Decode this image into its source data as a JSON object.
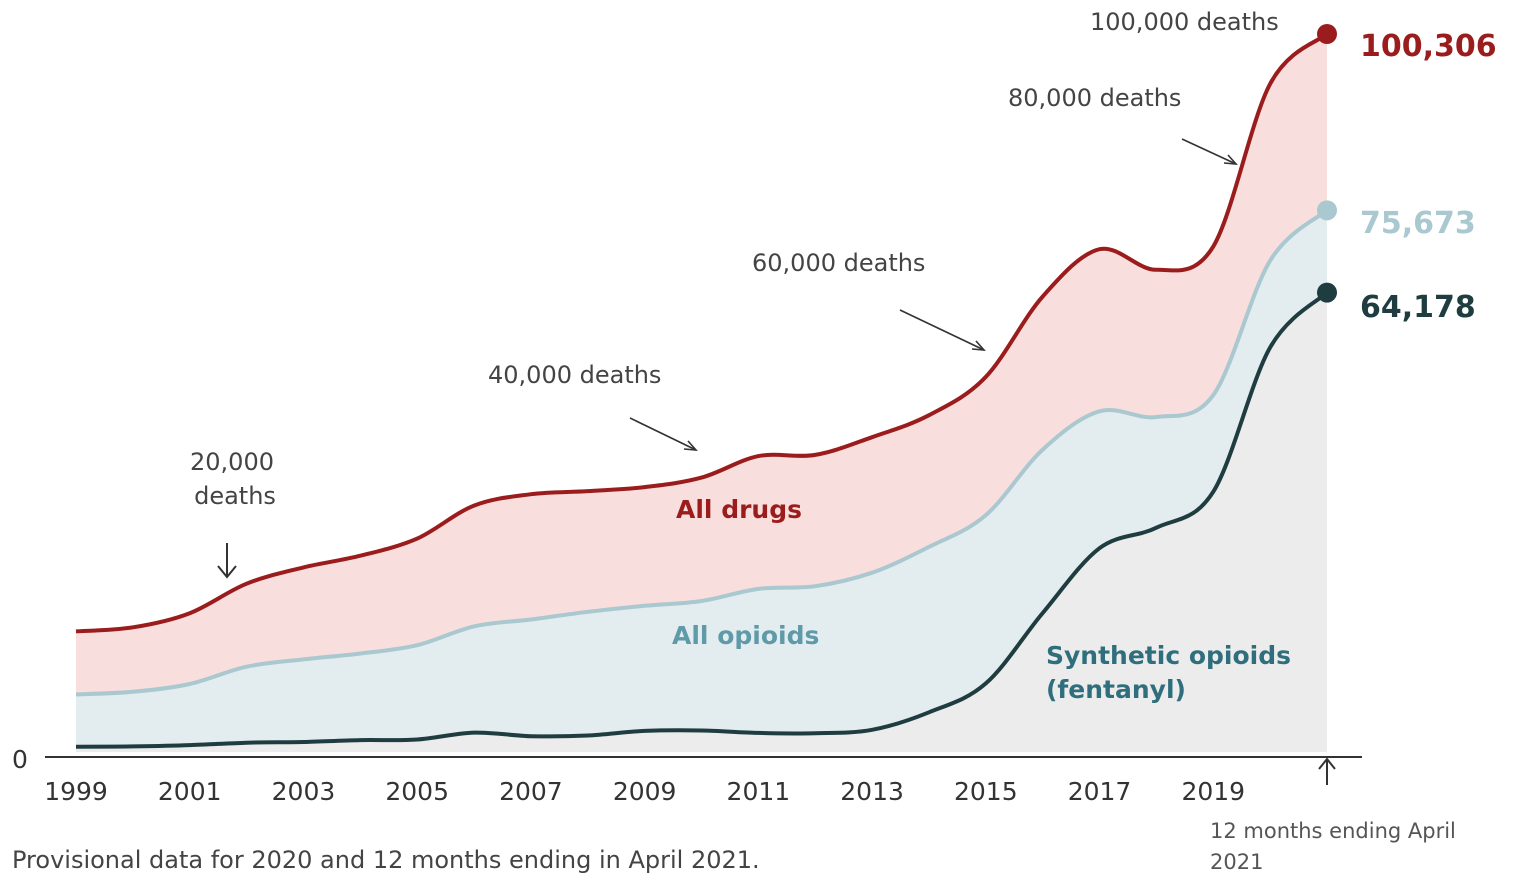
{
  "chart_data": {
    "type": "area",
    "x": [
      "1999",
      "2000",
      "2001",
      "2002",
      "2003",
      "2004",
      "2005",
      "2006",
      "2007",
      "2008",
      "2009",
      "2010",
      "2011",
      "2012",
      "2013",
      "2014",
      "2015",
      "2016",
      "2017",
      "2018",
      "2019",
      "2020",
      "12 months ending April 2021"
    ],
    "x_tick_labels": [
      "1999",
      "2001",
      "2003",
      "2005",
      "2007",
      "2009",
      "2011",
      "2013",
      "2015",
      "2017",
      "2019"
    ],
    "y_tick_labels": [
      "0"
    ],
    "ylim": [
      0,
      100306
    ],
    "grid": false,
    "series": [
      {
        "name": "All drugs",
        "color": "#9b1c1c",
        "fill": "#f9dede",
        "values": [
          16849,
          17415,
          19394,
          23518,
          25785,
          27424,
          29813,
          34425,
          36010,
          36450,
          37004,
          38329,
          41340,
          41502,
          43982,
          47055,
          52404,
          63632,
          70237,
          67367,
          70630,
          93331,
          100306
        ]
      },
      {
        "name": "All opioids",
        "color": "#a9c8cf",
        "fill": "#e3ecee",
        "values": [
          8050,
          8407,
          9496,
          11920,
          12940,
          13756,
          14918,
          17545,
          18516,
          19582,
          20422,
          21089,
          22784,
          23166,
          25052,
          28647,
          33091,
          42249,
          47600,
          46802,
          49860,
          68630,
          75673
        ]
      },
      {
        "name": "Synthetic opioids (fentanyl)",
        "color": "#1f3d40",
        "fill": "#ececec",
        "values": [
          730,
          782,
          957,
          1295,
          1400,
          1664,
          1742,
          2707,
          2213,
          2306,
          2946,
          3007,
          2666,
          2628,
          3105,
          5544,
          9580,
          19413,
          28466,
          31335,
          36359,
          56516,
          64178
        ]
      }
    ],
    "series_labels": {
      "all_drugs": "All drugs",
      "all_opioids": "All opioids",
      "synthetic_line1": "Synthetic opioids",
      "synthetic_line2": "(fentanyl)"
    },
    "end_labels": [
      "100,306",
      "75,673",
      "64,178"
    ],
    "annotations": {
      "a20k_line1": "20,000",
      "a20k_line2": "deaths",
      "a40k": "40,000 deaths",
      "a60k": "60,000 deaths",
      "a80k": "80,000 deaths",
      "a100k": "100,000 deaths"
    },
    "end_note": "12 months ending April 2021",
    "footnote": "Provisional data for 2020 and 12 months ending in April 2021."
  }
}
